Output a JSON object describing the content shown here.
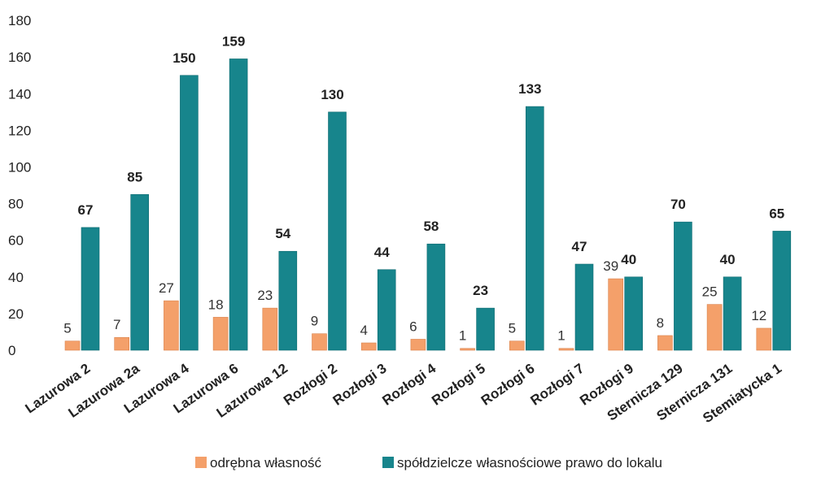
{
  "chart_data": {
    "type": "bar",
    "title": "",
    "xlabel": "",
    "ylabel": "",
    "ylim": [
      0,
      180
    ],
    "y_ticks": [
      0,
      20,
      40,
      60,
      80,
      100,
      120,
      140,
      160,
      180
    ],
    "grid": false,
    "legend_position": "bottom",
    "categories": [
      "Lazurowa 2",
      "Lazurowa 2a",
      "Lazurowa 4",
      "Lazurowa 6",
      "Lazurowa 12",
      "Rozłogi 2",
      "Rozłogi 3",
      "Rozłogi 4",
      "Rozłogi 5",
      "Rozłogi 6",
      "Rozłogi 7",
      "Rozłogi 9",
      "Sternicza 129",
      "Sternicza 131",
      "Stemiatycka 1"
    ],
    "series": [
      {
        "name": "odrębna własność",
        "color": "#F4A06A",
        "values": [
          5,
          7,
          27,
          18,
          23,
          9,
          4,
          6,
          1,
          5,
          1,
          39,
          8,
          25,
          12
        ]
      },
      {
        "name": "spółdzielcze własnościowe prawo do lokalu",
        "color": "#17858C",
        "values": [
          67,
          85,
          150,
          159,
          54,
          130,
          44,
          58,
          23,
          133,
          47,
          40,
          70,
          40,
          65
        ]
      }
    ]
  }
}
